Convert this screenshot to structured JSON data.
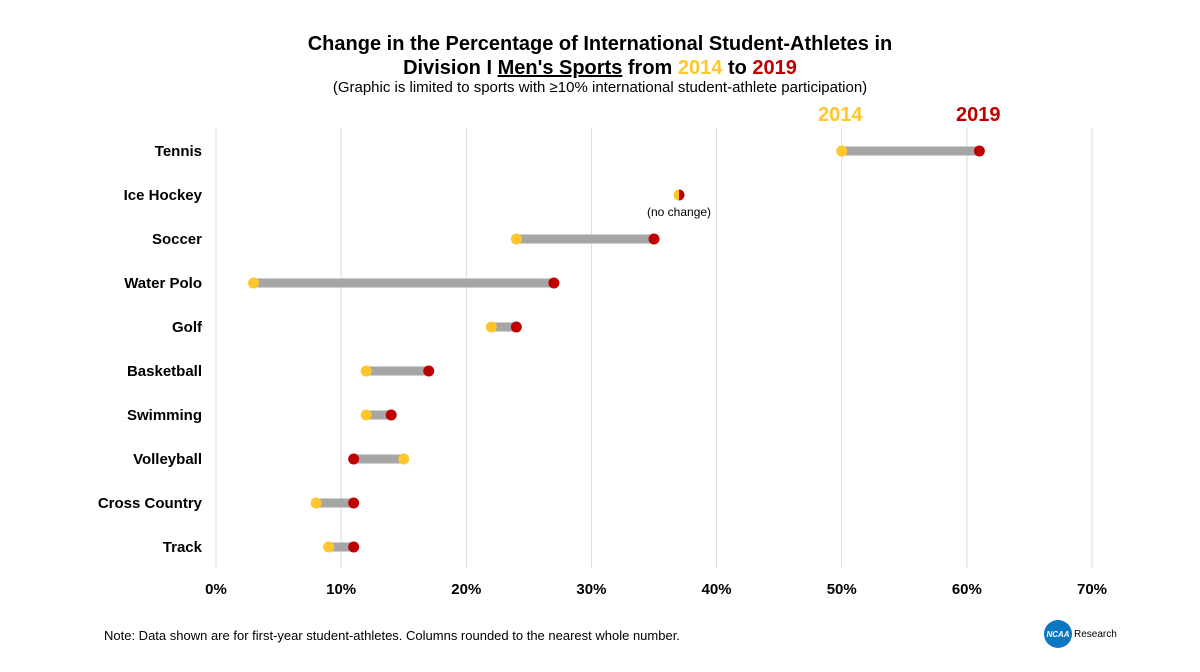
{
  "chart_data": {
    "type": "dumbbell",
    "title_line1": "Change in the Percentage of International Student-Athletes in",
    "title_line2_prefix": "Division I ",
    "title_line2_underlined": "Men's Sports",
    "title_line2_from": " from ",
    "title_line2_to": " to ",
    "subtitle": "(Graphic is limited to sports with ≥10% international student-athlete participation)",
    "legend": [
      {
        "name": "2014",
        "color": "#ffc72c"
      },
      {
        "name": "2019",
        "color": "#c00000"
      }
    ],
    "xlim": [
      0,
      70
    ],
    "ticks": [
      {
        "value": 0,
        "label": "0%"
      },
      {
        "value": 10,
        "label": "10%"
      },
      {
        "value": 20,
        "label": "20%"
      },
      {
        "value": 30,
        "label": "30%"
      },
      {
        "value": 40,
        "label": "40%"
      },
      {
        "value": 50,
        "label": "50%"
      },
      {
        "value": 60,
        "label": "60%"
      },
      {
        "value": 70,
        "label": "70%"
      }
    ],
    "categories": [
      "Tennis",
      "Ice Hockey",
      "Soccer",
      "Water Polo",
      "Golf",
      "Basketball",
      "Swimming",
      "Volleyball",
      "Cross Country",
      "Track"
    ],
    "series": [
      {
        "name": "2014",
        "values": [
          50,
          37,
          24,
          3,
          22,
          12,
          12,
          15,
          8,
          9
        ]
      },
      {
        "name": "2019",
        "values": [
          61,
          37,
          35,
          27,
          24,
          17,
          14,
          11,
          11,
          11
        ]
      }
    ],
    "annotations": [
      {
        "category": "Ice Hockey",
        "text": "(no change)"
      }
    ],
    "grid": true
  },
  "footer": {
    "note": "Note: Data shown are for first-year student-athletes. Columns rounded to the nearest whole number.",
    "logo_mark": "NCAA",
    "logo_text": "Research"
  }
}
